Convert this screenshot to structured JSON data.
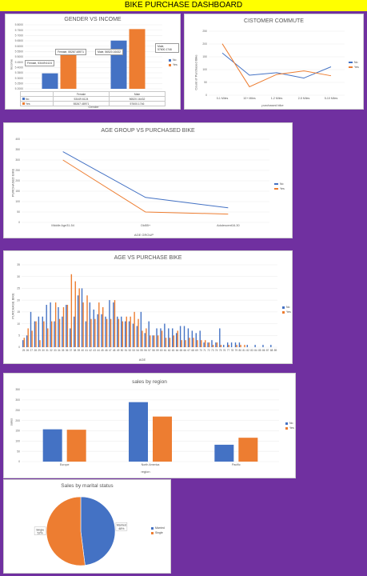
{
  "dashboard": {
    "title": "BIKE PURCHASE DASHBOARD"
  },
  "colors": {
    "no": "#4472c4",
    "yes": "#ed7d31",
    "background": "#7030a0",
    "banner": "#ffff00"
  },
  "charts": {
    "gender_income": {
      "type": "bar",
      "title": "GENDER VS INCOME",
      "xlabel": "Gender",
      "ylabel": "Income",
      "categories": [
        "Female",
        "Male"
      ],
      "ylim": [
        52000,
        58000
      ],
      "yticks": [
        "5 8000",
        "5 7500",
        "5 7000",
        "5 6500",
        "5 6000",
        "5 5500",
        "5 5000",
        "5 4500",
        "5 4000",
        "5 3500",
        "5 3000",
        "5 2500",
        "5 2000"
      ],
      "series": [
        {
          "name": "No",
          "values": [
            53449.6124,
            56520.16432
          ]
        },
        {
          "name": "Yes",
          "values": [
            55267.48971,
            57600.1746
          ]
        }
      ],
      "table_rows": [
        {
          "name": "No",
          "cells": [
            "53449.6124",
            "56520.16432"
          ]
        },
        {
          "name": "Yes",
          "cells": [
            "55267.48971",
            "57600.1746"
          ]
        }
      ],
      "callouts": [
        "Female, 53449.6124",
        "Female, 55267.48971",
        "Male, 56520.16432",
        "Male, 57600.1746"
      ]
    },
    "commute": {
      "type": "line",
      "title": "CISTOMER COMMUTE",
      "xlabel": "purchased bike",
      "ylabel": "Count of Purchased Bike",
      "categories": [
        "0-1 Miles",
        "10+ Miles",
        "1-2 Miles",
        "2-5 Miles",
        "5-10 Miles"
      ],
      "ylim": [
        0,
        250
      ],
      "yticks": [
        "250",
        "200",
        "150",
        "100",
        "50",
        "0"
      ],
      "series": [
        {
          "name": "No",
          "values": [
            165,
            78,
            88,
            67,
            111
          ]
        },
        {
          "name": "Yes",
          "values": [
            201,
            33,
            81,
            95,
            76
          ]
        }
      ]
    },
    "age_group": {
      "type": "line",
      "title": "AGE GROUP VS PURCHASED BIKE",
      "xlabel": "AGE GROUP",
      "ylabel": "PURCHASED BIKE",
      "categories": [
        "Middle Age31-54",
        "Old55+",
        "Adolescent16-30"
      ],
      "ylim": [
        0,
        400
      ],
      "yticks": [
        "400",
        "350",
        "300",
        "250",
        "200",
        "150",
        "100",
        "50",
        "0"
      ],
      "series": [
        {
          "name": "No",
          "values": [
            340,
            120,
            70
          ]
        },
        {
          "name": "Yes",
          "values": [
            300,
            50,
            40
          ]
        }
      ]
    },
    "age_purchase": {
      "type": "bar",
      "title": "AGE VS PURCHASE BIKE",
      "xlabel": "AGE",
      "ylabel": "PURCHASE BIKE",
      "categories": [
        "25",
        "26",
        "27",
        "28",
        "29",
        "30",
        "31",
        "32",
        "33",
        "34",
        "35",
        "36",
        "37",
        "38",
        "39",
        "40",
        "41",
        "42",
        "43",
        "44",
        "45",
        "46",
        "47",
        "48",
        "49",
        "50",
        "51",
        "52",
        "53",
        "54",
        "55",
        "56",
        "57",
        "58",
        "59",
        "60",
        "61",
        "62",
        "63",
        "64",
        "65",
        "66",
        "67",
        "68",
        "69",
        "70",
        "71",
        "72",
        "73",
        "74",
        "75",
        "76",
        "77",
        "78",
        "79",
        "80",
        "81",
        "82",
        "83",
        "84",
        "85",
        "86",
        "87",
        "88",
        "89"
      ],
      "ylim": [
        0,
        35
      ],
      "yticks": [
        "35",
        "30",
        "25",
        "20",
        "15",
        "10",
        "5",
        "0"
      ],
      "series": [
        {
          "name": "No",
          "values": [
            3,
            5,
            15,
            11,
            13,
            13,
            18,
            19,
            11,
            17,
            13,
            18,
            8,
            13,
            22,
            25,
            11,
            19,
            16,
            14,
            14,
            13,
            20,
            19,
            13,
            13,
            11,
            11,
            10,
            9,
            15,
            6,
            11,
            5,
            8,
            8,
            10,
            8,
            8,
            6,
            9,
            9,
            8,
            7,
            6,
            7,
            2,
            2,
            3,
            2,
            8,
            1,
            2,
            2,
            2,
            2,
            0,
            1,
            0,
            1,
            0,
            1,
            0,
            1,
            0
          ]
        },
        {
          "name": "Yes",
          "values": [
            4,
            8,
            7,
            11,
            3,
            11,
            8,
            11,
            19,
            12,
            17,
            18,
            31,
            28,
            25,
            19,
            22,
            12,
            12,
            19,
            17,
            12,
            12,
            20,
            12,
            11,
            13,
            13,
            15,
            12,
            7,
            8,
            5,
            5,
            5,
            7,
            4,
            4,
            5,
            7,
            3,
            3,
            4,
            4,
            3,
            3,
            3,
            2,
            1,
            2,
            1,
            0,
            1,
            0,
            1,
            1,
            1,
            0,
            0,
            0,
            0,
            0,
            0,
            0,
            0
          ]
        }
      ]
    },
    "sales_region": {
      "type": "bar",
      "title": "sales by region",
      "xlabel": "region",
      "ylabel": "sales",
      "categories": [
        "Europe",
        "North America",
        "Pacific"
      ],
      "ylim": [
        0,
        350
      ],
      "yticks": [
        "350",
        "300",
        "250",
        "200",
        "150",
        "100",
        "50",
        "0"
      ],
      "series": [
        {
          "name": "No",
          "values": [
            157,
            289,
            82
          ]
        },
        {
          "name": "Yes",
          "values": [
            155,
            219,
            116
          ]
        }
      ]
    },
    "marital": {
      "type": "pie",
      "title": "Sales by marital status",
      "slices": [
        {
          "name": "Married",
          "value": 48,
          "label": "Married\n48%"
        },
        {
          "name": "Single",
          "value": 52,
          "label": "Single\n52%"
        }
      ]
    }
  }
}
